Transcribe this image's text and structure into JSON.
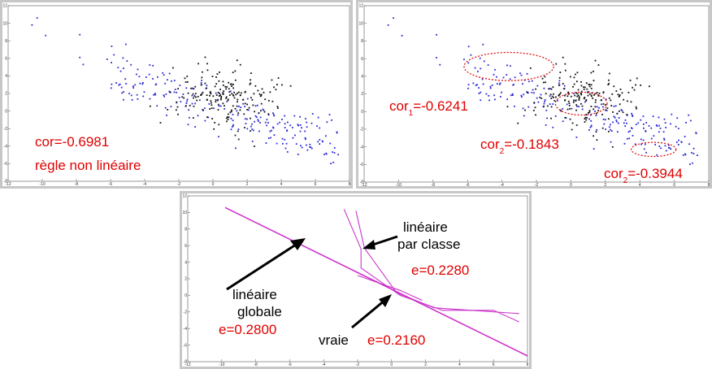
{
  "colors": {
    "class_a": "#2a2ad8",
    "class_b": "#111111",
    "annotation": "#e00000",
    "line": "#cc33cc",
    "frame": "#c7c7c7",
    "axis": "#6e6e6e"
  },
  "chart_data": [
    {
      "id": "left",
      "type": "scatter",
      "title": "",
      "xlabel": "",
      "ylabel": "",
      "xlim": [
        -12,
        8
      ],
      "ylim": [
        -8,
        12
      ],
      "xticks": [
        "-12",
        "-10",
        "-8",
        "-6",
        "-4",
        "-2",
        "0",
        "2",
        "4",
        "6",
        "8"
      ],
      "yticks": [
        "-8",
        "-6",
        "-4",
        "-2",
        "0",
        "2",
        "4",
        "6",
        "8",
        "10",
        "12"
      ],
      "grid": false,
      "series": [],
      "annotations": {
        "cor": "cor=-0.6981",
        "rule": "règle non linéaire"
      }
    },
    {
      "id": "right",
      "type": "scatter",
      "title": "",
      "xlabel": "",
      "ylabel": "",
      "xlim": [
        -12,
        8
      ],
      "ylim": [
        -8,
        12
      ],
      "xticks": [
        "-12",
        "-10",
        "-8",
        "-6",
        "-4",
        "-2",
        "0",
        "2",
        "4",
        "6",
        "8"
      ],
      "yticks": [
        "-8",
        "-6",
        "-4",
        "-2",
        "0",
        "2",
        "4",
        "6",
        "8",
        "10",
        "12"
      ],
      "grid": false,
      "series": [],
      "ellipses": [
        {
          "cx": -3.6,
          "cy": 5.1,
          "rx": 2.6,
          "ry": 1.6
        },
        {
          "cx": 0.6,
          "cy": 0.9,
          "rx": 1.5,
          "ry": 1.3
        },
        {
          "cx": 4.8,
          "cy": -4.3,
          "rx": 1.3,
          "ry": 0.8
        }
      ],
      "annotations": {
        "cor1_main": "cor",
        "cor1_sub": "1",
        "cor1_value": "=-0.6241",
        "cor2_main": "cor",
        "cor2_sub": "2",
        "cor2_value": "=-0.1843",
        "cor3_main": "cor",
        "cor3_sub": "2",
        "cor3_value": "=-0.3944"
      }
    },
    {
      "id": "bottom",
      "type": "line",
      "title": "",
      "xlabel": "",
      "ylabel": "",
      "xlim": [
        -12,
        8
      ],
      "ylim": [
        -8,
        12
      ],
      "xticks": [
        "-12",
        "-10",
        "-8",
        "-6",
        "-4",
        "-2",
        "0",
        "2",
        "4",
        "6",
        "8"
      ],
      "yticks": [
        "-8",
        "-6",
        "-4",
        "-2",
        "0",
        "2",
        "4",
        "6",
        "8",
        "10",
        "12"
      ],
      "grid": false,
      "series": [
        {
          "points": [
            [
              -9.8,
              10.6
            ],
            [
              8,
              -7.3
            ]
          ]
        },
        {
          "points": [
            [
              -2.8,
              10.4
            ],
            [
              -1.8,
              5.6
            ],
            [
              -1.8,
              3.3
            ],
            [
              0.5,
              0.0
            ],
            [
              3.0,
              -1.8
            ],
            [
              6.0,
              -1.8
            ],
            [
              7.5,
              -3.2
            ]
          ]
        },
        {
          "points": [
            [
              -2.1,
              10.2
            ],
            [
              -1.6,
              5.7
            ],
            [
              0.3,
              0.3
            ],
            [
              2.5,
              -1.5
            ],
            [
              7.5,
              -2.2
            ]
          ]
        },
        {
          "points": [
            [
              -2.0,
              2.4
            ],
            [
              -0.9,
              1.6
            ],
            [
              0.5,
              0.6
            ],
            [
              1.8,
              -0.6
            ]
          ]
        }
      ],
      "annotations": {
        "class_title_1": "linéaire",
        "class_title_2": "par classe",
        "class_error": "e=0.2280",
        "global_title_1": "linéaire",
        "global_title_2": "globale",
        "global_error": "e=0.2800",
        "true_title": "vraie",
        "true_error": "e=0.2160"
      }
    }
  ]
}
